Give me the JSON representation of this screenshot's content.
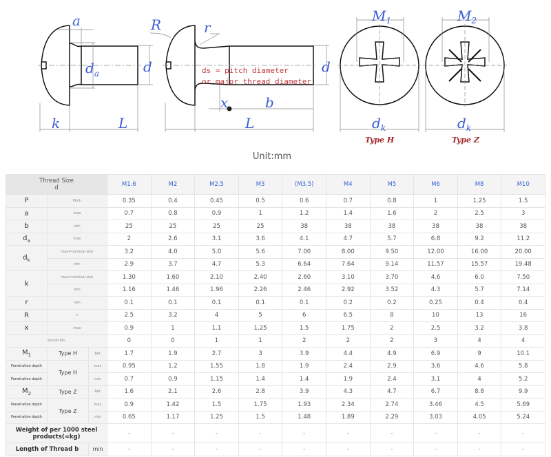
{
  "diagram": {
    "labels": {
      "a": "a",
      "d": "d",
      "d_a_main": "d",
      "d_a_sub": "a",
      "k": "k",
      "L": "L",
      "R": "R",
      "r": "r",
      "x": "x",
      "b": "b",
      "M1_main": "M",
      "M1_sub": "1",
      "M2_main": "M",
      "M2_sub": "2",
      "dk_main": "d",
      "dk_sub": "k"
    },
    "note_line1": "ds ≈ pitch diameter",
    "note_line2": "or major thread diameter",
    "type_h": "Type H",
    "type_z": "Type Z",
    "unit": "Unit:mm"
  },
  "table": {
    "header_label_line1": "Thread Size",
    "header_label_line2": "d",
    "sizes": [
      "M1.6",
      "M2",
      "M2.5",
      "M3",
      "(M3.5)",
      "M4",
      "M5",
      "M6",
      "M8",
      "M10"
    ],
    "rows": [
      {
        "sym": "P",
        "sub": "",
        "desc": "Pitch",
        "values": [
          "0.35",
          "0.4",
          "0.45",
          "0.5",
          "0.6",
          "0.7",
          "0.8",
          "1",
          "1.25",
          "1.5"
        ]
      },
      {
        "sym": "a",
        "sub": "",
        "desc": "max",
        "values": [
          "0.7",
          "0.8",
          "0.9",
          "1",
          "1.2",
          "1.4",
          "1.6",
          "2",
          "2.5",
          "3"
        ]
      },
      {
        "sym": "b",
        "sub": "",
        "desc": "min",
        "values": [
          "25",
          "25",
          "25",
          "25",
          "38",
          "38",
          "38",
          "38",
          "38",
          "38"
        ]
      },
      {
        "sym": "d",
        "sub": "a",
        "desc": "max",
        "values": [
          "2",
          "2.6",
          "3.1",
          "3.6",
          "4.1",
          "4.7",
          "5.7",
          "6.8",
          "9.2",
          "11.2"
        ]
      },
      {
        "sym": "d",
        "sub": "k",
        "desc": "max=nominal size",
        "values": [
          "3.2",
          "4.0",
          "5.0",
          "5.6",
          "7.00",
          "8.00",
          "9.50",
          "12.00",
          "16.00",
          "20.00"
        ]
      },
      {
        "sym": "",
        "sub": "",
        "desc": "min",
        "values": [
          "2.9",
          "3.7",
          "4.7",
          "5.3",
          "6.64",
          "7.64",
          "9.14",
          "11.57",
          "15.57",
          "19.48"
        ]
      },
      {
        "sym": "k",
        "sub": "",
        "desc": "max=nominal size",
        "values": [
          "1.30",
          "1.60",
          "2.10",
          "2.40",
          "2.60",
          "3.10",
          "3.70",
          "4.6",
          "6.0",
          "7.50"
        ]
      },
      {
        "sym": "",
        "sub": "",
        "desc": "min",
        "values": [
          "1.16",
          "1.46",
          "1.96",
          "2.26",
          "2.46",
          "2.92",
          "3.52",
          "4.3",
          "5.7",
          "7.14"
        ]
      },
      {
        "sym": "r",
        "sub": "",
        "desc": "min",
        "values": [
          "0.1",
          "0.1",
          "0.1",
          "0.1",
          "0.1",
          "0.2",
          "0.2",
          "0.25",
          "0.4",
          "0.4"
        ]
      },
      {
        "sym": "R",
        "sub": "",
        "desc": "≈",
        "values": [
          "2.5",
          "3.2",
          "4",
          "5",
          "6",
          "6.5",
          "8",
          "10",
          "13",
          "16"
        ]
      },
      {
        "sym": "x",
        "sub": "",
        "desc": "max",
        "values": [
          "0.9",
          "1",
          "1.1",
          "1.25",
          "1.5",
          "1.75",
          "2",
          "2.5",
          "3.2",
          "3.8"
        ]
      },
      {
        "label": "Socket No.",
        "values": [
          "0",
          "0",
          "1",
          "1",
          "2",
          "2",
          "2",
          "3",
          "4",
          "4"
        ]
      },
      {
        "sym": "M",
        "sub": "1",
        "type": "Type H",
        "desc": "Ref.",
        "values": [
          "1.7",
          "1.9",
          "2.7",
          "3",
          "3.9",
          "4.4",
          "4.9",
          "6.9",
          "9",
          "10.1"
        ]
      },
      {
        "label": "Penetration depth",
        "type": "Type H",
        "desc": "max",
        "values": [
          "0.95",
          "1.2",
          "1.55",
          "1.8",
          "1.9",
          "2.4",
          "2.9",
          "3.6",
          "4.6",
          "5.8"
        ]
      },
      {
        "label": "Penetration depth",
        "desc": "min",
        "values": [
          "0.7",
          "0.9",
          "1.15",
          "1.4",
          "1.4",
          "1.9",
          "2.4",
          "3.1",
          "4",
          "5.2"
        ]
      },
      {
        "sym": "M",
        "sub": "2",
        "type": "Type Z",
        "desc": "Ref.",
        "values": [
          "1.6",
          "2.1",
          "2.6",
          "2.8",
          "3.9",
          "4.3",
          "4.7",
          "6.7",
          "8.8",
          "9.9"
        ]
      },
      {
        "label": "Penetration depth",
        "type": "Type Z",
        "desc": "max",
        "values": [
          "0.9",
          "1.42",
          "1.5",
          "1.75",
          "1.93",
          "2.34",
          "2.74",
          "3.46",
          "4.5",
          "5.69"
        ]
      },
      {
        "label": "Penetration depth",
        "desc": "min",
        "values": [
          "0.65",
          "1.17",
          "1.25",
          "1.5",
          "1.48",
          "1.89",
          "2.29",
          "3.03",
          "4.05",
          "5.24"
        ]
      },
      {
        "label": "Weight of per 1000 steel products(≈kg)",
        "values": [
          "-",
          "-",
          "-",
          "-",
          "-",
          "-",
          "-",
          "-",
          "-",
          "-"
        ]
      },
      {
        "label": "Length of Thread b",
        "desc": "min",
        "values": [
          "-",
          "-",
          "-",
          "-",
          "-",
          "-",
          "-",
          "-",
          "-",
          "-"
        ]
      }
    ]
  }
}
